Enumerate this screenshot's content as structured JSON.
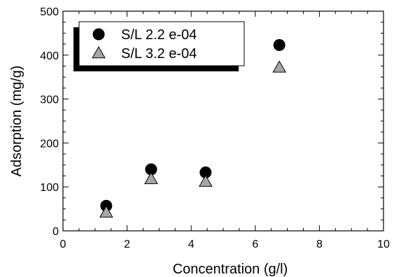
{
  "chart_data": {
    "type": "scatter",
    "xlabel": "Concentration (g/l)",
    "ylabel": "Adsorption (mg/g)",
    "xlim": [
      0,
      10
    ],
    "ylim": [
      0,
      500
    ],
    "x_ticks": [
      "0",
      "2",
      "4",
      "6",
      "8",
      "10"
    ],
    "y_ticks": [
      "0",
      "100",
      "200",
      "300",
      "400",
      "500"
    ],
    "grid": false,
    "legend_position": "top-left",
    "series": [
      {
        "name": "S/L 2.2 e-04",
        "marker": "circle",
        "color": "#000000",
        "points": [
          {
            "x": 1.35,
            "y": 57
          },
          {
            "x": 2.75,
            "y": 140
          },
          {
            "x": 4.45,
            "y": 133
          },
          {
            "x": 6.75,
            "y": 423
          }
        ]
      },
      {
        "name": "S/L 3.2 e-04",
        "marker": "triangle",
        "color": "#a6a6a6",
        "points": [
          {
            "x": 1.35,
            "y": 42
          },
          {
            "x": 2.75,
            "y": 118
          },
          {
            "x": 4.45,
            "y": 112
          },
          {
            "x": 6.75,
            "y": 372
          }
        ]
      }
    ]
  }
}
